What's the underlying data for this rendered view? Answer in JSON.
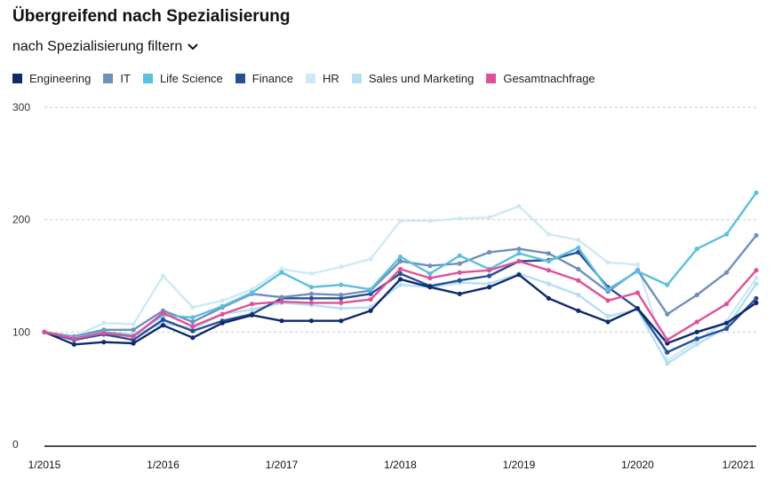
{
  "title": "Übergreifend nach Spezialisierung",
  "filter": {
    "label": "nach Spezialisierung filtern"
  },
  "colors": {
    "engineering": "#0f2a6b",
    "it": "#6f8fbd",
    "life_science": "#5bc0de",
    "finance": "#284f96",
    "hr": "#cfe9f5",
    "sales": "#b4e0f2",
    "gesamt": "#e0509a"
  },
  "chart_data": {
    "type": "line",
    "title": "Übergreifend nach Spezialisierung",
    "xlabel": "",
    "ylabel": "",
    "ylim": [
      0,
      300
    ],
    "yticks": [
      "0",
      "100",
      "200",
      "300"
    ],
    "xticks": [
      "1/2015",
      "1/2016",
      "1/2017",
      "1/2018",
      "1/2019",
      "1/2020",
      "1/2021"
    ],
    "grid": true,
    "legend_position": "top-left",
    "series": [
      {
        "key": "hr",
        "name": "HR",
        "values": [
          100,
          96,
          108,
          107,
          150,
          122,
          128,
          138,
          156,
          152,
          158,
          165,
          199,
          199,
          201,
          202,
          212,
          187,
          182,
          162,
          160,
          75,
          92,
          110,
          148
        ]
      },
      {
        "key": "sales",
        "name": "Sales und Marketing",
        "values": [
          100,
          95,
          100,
          97,
          108,
          103,
          116,
          120,
          126,
          124,
          121,
          122,
          142,
          140,
          144,
          143,
          152,
          143,
          133,
          114,
          120,
          72,
          89,
          104,
          143
        ]
      },
      {
        "key": "finance",
        "name": "Finance",
        "values": [
          100,
          93,
          98,
          93,
          111,
          101,
          110,
          116,
          130,
          130,
          130,
          134,
          152,
          141,
          146,
          150,
          163,
          164,
          171,
          140,
          121,
          82,
          94,
          103,
          130
        ]
      },
      {
        "key": "it",
        "name": "IT",
        "values": [
          100,
          96,
          102,
          102,
          119,
          109,
          122,
          134,
          131,
          134,
          133,
          137,
          163,
          159,
          161,
          171,
          174,
          170,
          156,
          136,
          155,
          116,
          133,
          153,
          186
        ]
      },
      {
        "key": "life_science",
        "name": "Life Science",
        "values": [
          100,
          95,
          100,
          97,
          115,
          113,
          123,
          135,
          153,
          140,
          142,
          138,
          167,
          152,
          168,
          156,
          170,
          163,
          175,
          138,
          154,
          142,
          174,
          187,
          224
        ]
      },
      {
        "key": "engineering",
        "name": "Engineering",
        "values": [
          100,
          89,
          91,
          90,
          106,
          95,
          108,
          115,
          110,
          110,
          110,
          119,
          147,
          140,
          134,
          140,
          151,
          130,
          119,
          109,
          121,
          90,
          100,
          108,
          126
        ]
      },
      {
        "key": "gesamt",
        "name": "Gesamtnachfrage",
        "values": [
          100,
          94,
          99,
          96,
          117,
          105,
          116,
          125,
          127,
          126,
          126,
          129,
          156,
          148,
          153,
          155,
          163,
          155,
          146,
          128,
          135,
          93,
          109,
          125,
          155
        ]
      }
    ],
    "legend_order": [
      "engineering",
      "it",
      "life_science",
      "finance",
      "hr",
      "sales",
      "gesamt"
    ]
  }
}
